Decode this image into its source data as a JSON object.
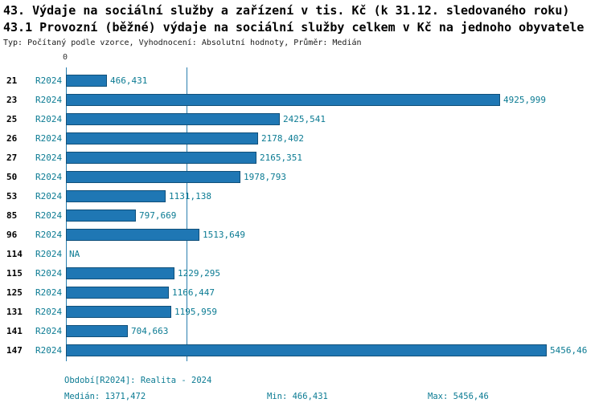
{
  "title_line1": "43. Výdaje na sociální služby a zařízení v tis. Kč (k 31.12. sledovaného roku)",
  "title_line2": "43.1 Provozní (běžné) výdaje na sociální služby celkem v Kč na jednoho obyvatele",
  "subtitle": "Typ: Počítaný podle vzorce, Vyhodnocení: Absolutní hodnoty, Průměr: Medián",
  "axis": {
    "zero_label": "0"
  },
  "chart_data": {
    "type": "bar",
    "orientation": "horizontal",
    "period_label": "R2024",
    "categories": [
      "21",
      "23",
      "25",
      "26",
      "27",
      "50",
      "53",
      "85",
      "96",
      "114",
      "115",
      "125",
      "131",
      "141",
      "147"
    ],
    "values": [
      466.431,
      4925.999,
      2425.541,
      2178.402,
      2165.351,
      1978.793,
      1131.138,
      797.669,
      1513.649,
      null,
      1229.295,
      1166.447,
      1195.959,
      704.663,
      5456.46
    ],
    "value_labels": [
      "466,431",
      "4925,999",
      "2425,541",
      "2178,402",
      "2165,351",
      "1978,793",
      "1131,138",
      "797,669",
      "1513,649",
      "NA",
      "1229,295",
      "1166,447",
      "1195,959",
      "704,663",
      "5456,46"
    ],
    "median": 1371.472,
    "min": 466.431,
    "max": 5456.46,
    "xlim": [
      0,
      6000
    ],
    "bar_color": "#1f77b4",
    "text_color": "#0b7b93",
    "legend_position": "none",
    "grid": false
  },
  "footer": {
    "period": "Období[R2024]: Realita - 2024",
    "median": "Medián: 1371,472",
    "min": "Min: 466,431",
    "max": "Max: 5456,46"
  }
}
